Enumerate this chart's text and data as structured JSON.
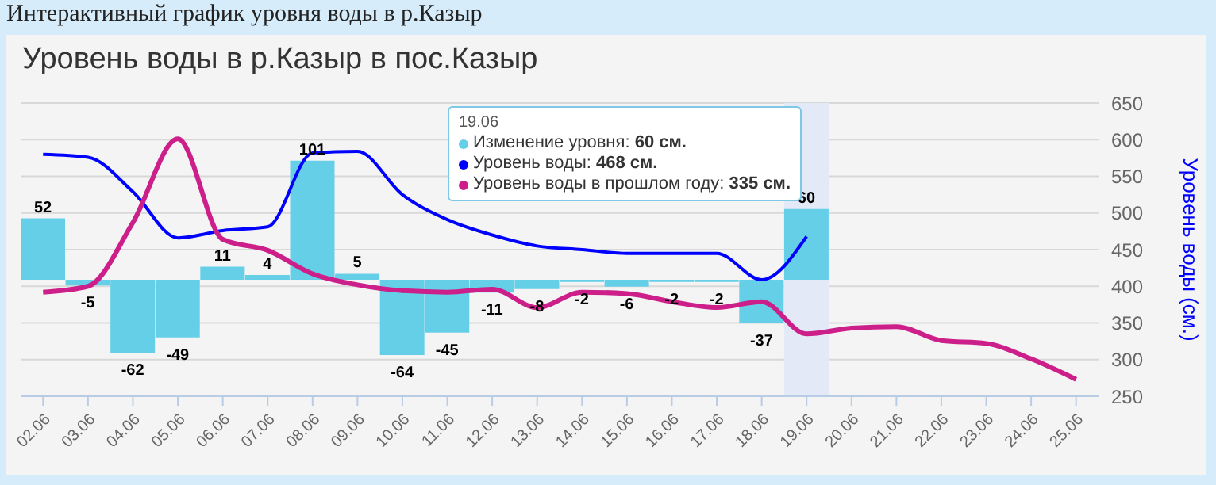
{
  "chart_data": {
    "type": "line",
    "title": "Интерактивный график уровня воды в р.Казыр",
    "subtitle": "Уровень воды в р.Казыр в пос.Казыр",
    "ylabel": "Уровень воды (см.)",
    "legend_title": "19.06",
    "annotations": [
      "Изменение уровня: 60 см.",
      "Уровень воды: 468 см.",
      "Уровень воды в прошлом году: 335 см."
    ],
    "categories": [
      "02.06",
      "03.06",
      "04.06",
      "05.06",
      "06.06",
      "07.06",
      "08.06",
      "09.06",
      "10.06",
      "11.06",
      "12.06",
      "13.06",
      "14.06",
      "15.06",
      "16.06",
      "17.06",
      "18.06",
      "19.06",
      "20.06",
      "21.06",
      "22.06",
      "23.06",
      "24.06",
      "25.06"
    ],
    "series": [
      {
        "type": "bar",
        "axis": "y2",
        "color": "#66cfe8",
        "values": [
          52,
          -5,
          -62,
          -49,
          11,
          4,
          101,
          5,
          -64,
          -45,
          -11,
          -8,
          -2,
          -6,
          -2,
          -2,
          -37,
          60,
          null,
          null,
          null,
          null,
          null,
          null
        ],
        "value_labels": [
          "52",
          "-5",
          "-62",
          "-49",
          "11",
          "4",
          "101",
          "5",
          "-64",
          "-45",
          "-11",
          "-8",
          "-2",
          "-6",
          "-2",
          "-2",
          "-37",
          "60",
          null,
          null,
          null,
          null,
          null,
          null
        ]
      },
      {
        "color": "#0000ff",
        "values": [
          580,
          576,
          529,
          466,
          476,
          481,
          582,
          584,
          525,
          491,
          470,
          455,
          450,
          445,
          445,
          445,
          409,
          468,
          null,
          null,
          null,
          null,
          null,
          null
        ]
      },
      {
        "color": "#cc1f8a",
        "values": [
          392,
          400,
          487,
          601,
          464,
          449,
          417,
          402,
          394,
          392,
          396,
          371,
          392,
          390,
          379,
          371,
          379,
          335,
          343,
          345,
          326,
          322,
          301,
          273
        ]
      }
    ],
    "ylim": [
      250,
      650
    ],
    "yticks": [
      250,
      300,
      350,
      400,
      450,
      500,
      550,
      600,
      650
    ],
    "y2lim": [
      -99,
      150
    ],
    "bands": [
      {
        "axis": "x",
        "from": "19.06",
        "to": "19.06",
        "color": "#e3e9f6"
      }
    ],
    "grid": "y",
    "marker": "none",
    "line_style": "solid"
  }
}
